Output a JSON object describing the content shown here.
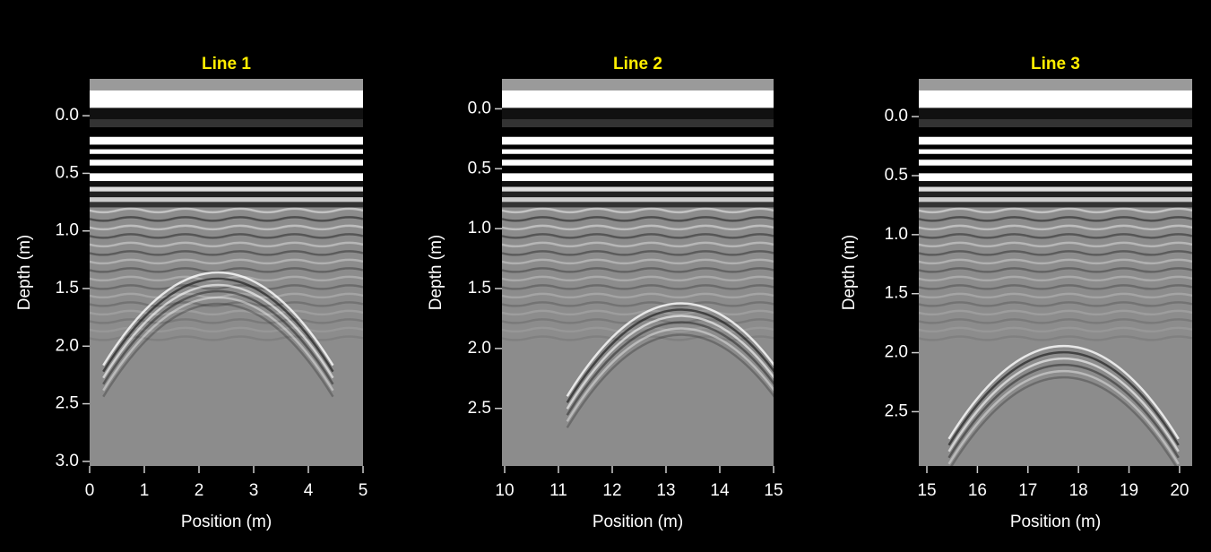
{
  "chart_data": [
    {
      "type": "image",
      "title": "Line 1",
      "xlabel": "Position (m)",
      "ylabel": "Depth (m)",
      "xlim": [
        0,
        5
      ],
      "ylim": [
        -0.32,
        3.04
      ],
      "y_inverted": true,
      "xticks": [
        0,
        1,
        2,
        3,
        4,
        5
      ],
      "yticks": [
        {
          "value": 0,
          "label": "0.0"
        },
        {
          "value": 0.5,
          "label": "0.5"
        },
        {
          "value": 1,
          "label": "1.0"
        },
        {
          "value": 1.5,
          "label": "1.5"
        },
        {
          "value": 2,
          "label": "2.0"
        },
        {
          "value": 2.5,
          "label": "2.5"
        },
        {
          "value": 3,
          "label": "3.0"
        }
      ]
    },
    {
      "type": "image",
      "title": "Line 2",
      "xlabel": "Position (m)",
      "ylabel": "Depth (m)",
      "xlim": [
        9.95,
        15
      ],
      "ylim": [
        -0.25,
        2.98
      ],
      "y_inverted": true,
      "xticks": [
        10,
        11,
        12,
        13,
        14,
        15
      ],
      "yticks": [
        {
          "value": 0,
          "label": "0.0"
        },
        {
          "value": 0.5,
          "label": "0.5"
        },
        {
          "value": 1,
          "label": "1.0"
        },
        {
          "value": 1.5,
          "label": "1.5"
        },
        {
          "value": 2,
          "label": "2.0"
        },
        {
          "value": 2.5,
          "label": "2.5"
        }
      ]
    },
    {
      "type": "image",
      "title": "Line 3",
      "xlabel": "Position (m)",
      "ylabel": "Depth (m)",
      "xlim": [
        14.84,
        20.25
      ],
      "ylim": [
        -0.32,
        2.96
      ],
      "y_inverted": true,
      "xticks": [
        15,
        16,
        17,
        18,
        19,
        20
      ],
      "yticks": [
        {
          "value": 0,
          "label": "0.0"
        },
        {
          "value": 0.5,
          "label": "0.5"
        },
        {
          "value": 1,
          "label": "1.0"
        },
        {
          "value": 1.5,
          "label": "1.5"
        },
        {
          "value": 2,
          "label": "2.0"
        },
        {
          "value": 2.5,
          "label": "2.5"
        }
      ]
    }
  ]
}
